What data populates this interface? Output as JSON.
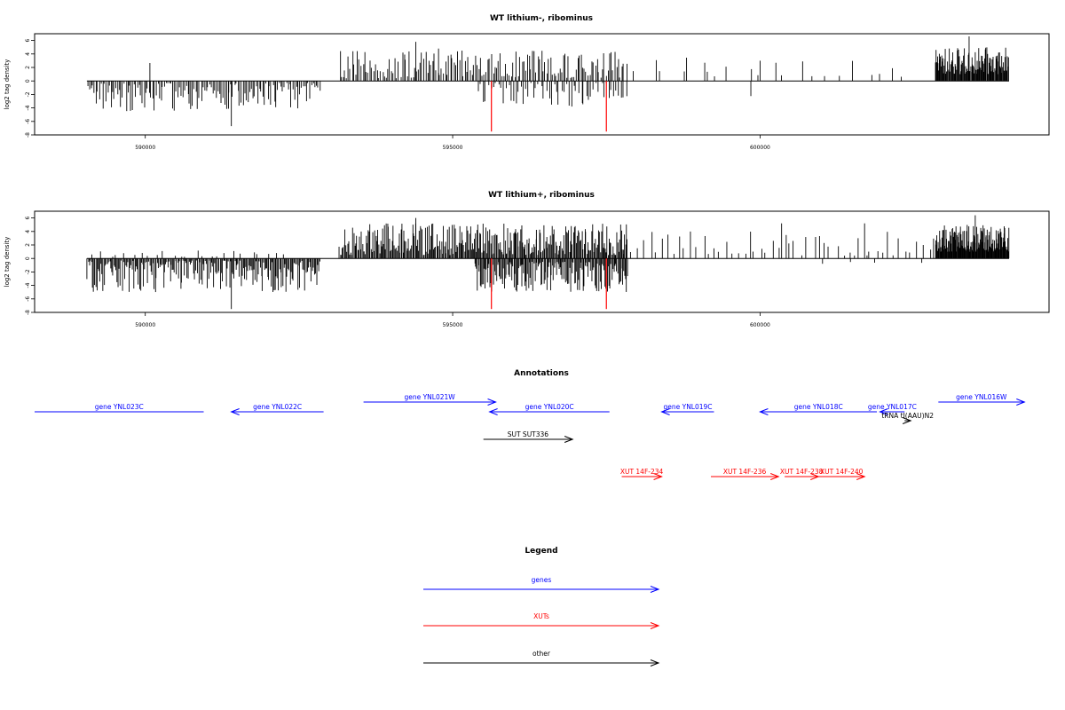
{
  "chart_data": [
    {
      "type": "bar",
      "title": "WT lithium-, ribominus",
      "ylabel": "log2 tag density",
      "xlim": [
        588200,
        604700
      ],
      "ylim": [
        -8,
        7
      ],
      "xticks": [
        590000,
        595000,
        600000
      ],
      "yticks": [
        -8,
        -6,
        -4,
        -2,
        0,
        2,
        4,
        6
      ],
      "baseline_range": [
        589050,
        604050
      ],
      "highlight_color": "#ff0000",
      "highlights": [
        {
          "x": 595630,
          "y": -7.5
        },
        {
          "x": 597500,
          "y": -7.5
        }
      ],
      "tracks": [
        {
          "strand": "minus",
          "start": 589050,
          "end": 592850,
          "count": 140,
          "min": 0.3,
          "max": 4.5,
          "peaks": [
            {
              "x": 591400,
              "y": -6.7
            }
          ]
        },
        {
          "strand": "plus",
          "start": 593150,
          "end": 597800,
          "count": 160,
          "min": 0.4,
          "max": 4.5,
          "peaks": [
            {
              "x": 594400,
              "y": 5.8
            },
            {
              "x": 594770,
              "y": 4.8
            }
          ]
        },
        {
          "strand": "minus",
          "start": 595400,
          "end": 597850,
          "count": 60,
          "min": 0.3,
          "max": 3.8,
          "peaks": []
        },
        {
          "strand": "plus",
          "start": 597700,
          "end": 602500,
          "count": 22,
          "min": 0.5,
          "max": 3.5,
          "peaks": [
            {
              "x": 599100,
              "y": 2.7
            },
            {
              "x": 600000,
              "y": 3.0
            }
          ]
        },
        {
          "strand": "minus",
          "start": 599800,
          "end": 599900,
          "count": 1,
          "min": 2.2,
          "max": 2.4,
          "peaks": []
        },
        {
          "strand": "plus",
          "start": 602850,
          "end": 604050,
          "count": 120,
          "min": 1.0,
          "max": 5.0,
          "peaks": [
            {
              "x": 603400,
              "y": 6.6
            }
          ]
        },
        {
          "strand": "plus",
          "start": 590050,
          "end": 590100,
          "count": 1,
          "min": 2.6,
          "max": 2.8,
          "peaks": []
        }
      ]
    },
    {
      "type": "bar",
      "title": "WT lithium+, ribominus",
      "ylabel": "log2 tag density",
      "xlim": [
        588200,
        604700
      ],
      "ylim": [
        -8,
        7
      ],
      "xticks": [
        590000,
        595000,
        600000
      ],
      "yticks": [
        -8,
        -6,
        -4,
        -2,
        0,
        2,
        4,
        6
      ],
      "baseline_range": [
        589050,
        604050
      ],
      "highlight_color": "#ff0000",
      "highlights": [
        {
          "x": 595630,
          "y": -7.5
        },
        {
          "x": 597500,
          "y": -7.5
        }
      ],
      "tracks": [
        {
          "strand": "minus",
          "start": 589050,
          "end": 592850,
          "count": 220,
          "min": 0.3,
          "max": 5.0,
          "peaks": [
            {
              "x": 591400,
              "y": -7.5
            }
          ]
        },
        {
          "strand": "plus",
          "start": 589100,
          "end": 592300,
          "count": 25,
          "min": 0.2,
          "max": 1.2,
          "peaks": []
        },
        {
          "strand": "plus",
          "start": 593150,
          "end": 597850,
          "count": 300,
          "min": 0.5,
          "max": 5.2,
          "peaks": [
            {
              "x": 594400,
              "y": 6.0
            }
          ]
        },
        {
          "strand": "minus",
          "start": 595350,
          "end": 597850,
          "count": 160,
          "min": 0.5,
          "max": 5.0,
          "peaks": []
        },
        {
          "strand": "plus",
          "start": 597700,
          "end": 602900,
          "count": 55,
          "min": 0.4,
          "max": 4.0,
          "peaks": [
            {
              "x": 600350,
              "y": 5.2
            },
            {
              "x": 601700,
              "y": 5.2
            }
          ]
        },
        {
          "strand": "minus",
          "start": 600900,
          "end": 602700,
          "count": 4,
          "min": 0.4,
          "max": 1.0,
          "peaks": []
        },
        {
          "strand": "plus",
          "start": 602850,
          "end": 604050,
          "count": 150,
          "min": 1.0,
          "max": 5.0,
          "peaks": [
            {
              "x": 603500,
              "y": 6.4
            }
          ]
        }
      ]
    }
  ],
  "annotations": {
    "title": "Annotations",
    "xlim": [
      588200,
      604700
    ],
    "items": [
      {
        "label": "gene YNL023C",
        "start": 588200,
        "end": 590950,
        "row": 1,
        "dir": "none",
        "color": "#0000ff"
      },
      {
        "label": "gene YNL022C",
        "start": 591400,
        "end": 592900,
        "row": 1,
        "dir": "left",
        "color": "#0000ff"
      },
      {
        "label": "gene YNL021W",
        "start": 593550,
        "end": 595700,
        "row": 0,
        "dir": "right",
        "color": "#0000ff"
      },
      {
        "label": "gene YNL020C",
        "start": 595600,
        "end": 597550,
        "row": 1,
        "dir": "left",
        "color": "#0000ff"
      },
      {
        "label": "gene YNL019C",
        "start": 598400,
        "end": 599250,
        "row": 1,
        "dir": "left",
        "color": "#0000ff"
      },
      {
        "label": "gene YNL018C",
        "start": 600000,
        "end": 601900,
        "row": 1,
        "dir": "left",
        "color": "#0000ff"
      },
      {
        "label": "gene YNL017C",
        "start": 601950,
        "end": 602350,
        "row": 1,
        "dir": "left",
        "color": "#0000ff"
      },
      {
        "label": "gene YNL016W",
        "start": 602900,
        "end": 604300,
        "row": 0,
        "dir": "right",
        "color": "#0000ff"
      },
      {
        "label": "tRNA tI(AAU)N2",
        "start": 602350,
        "end": 602450,
        "row": 2,
        "dir": "right",
        "color": "#000000"
      },
      {
        "label": "SUT SUT336",
        "start": 595500,
        "end": 596950,
        "row": 3,
        "dir": "right",
        "color": "#000000"
      },
      {
        "label": "XUT 14F-234",
        "start": 597750,
        "end": 598400,
        "row": 4,
        "dir": "right",
        "color": "#ff0000"
      },
      {
        "label": "XUT 14F-236",
        "start": 599200,
        "end": 600300,
        "row": 4,
        "dir": "right",
        "color": "#ff0000"
      },
      {
        "label": "XUT 14F-238",
        "start": 600400,
        "end": 600950,
        "row": 4,
        "dir": "right",
        "color": "#ff0000"
      },
      {
        "label": "XUT 14F-240",
        "start": 600950,
        "end": 601700,
        "row": 4,
        "dir": "right",
        "color": "#ff0000"
      }
    ]
  },
  "legend": {
    "title": "Legend",
    "items": [
      {
        "label": "genes",
        "color": "#0000ff"
      },
      {
        "label": "XUTs",
        "color": "#ff0000"
      },
      {
        "label": "other",
        "color": "#000000"
      }
    ]
  }
}
